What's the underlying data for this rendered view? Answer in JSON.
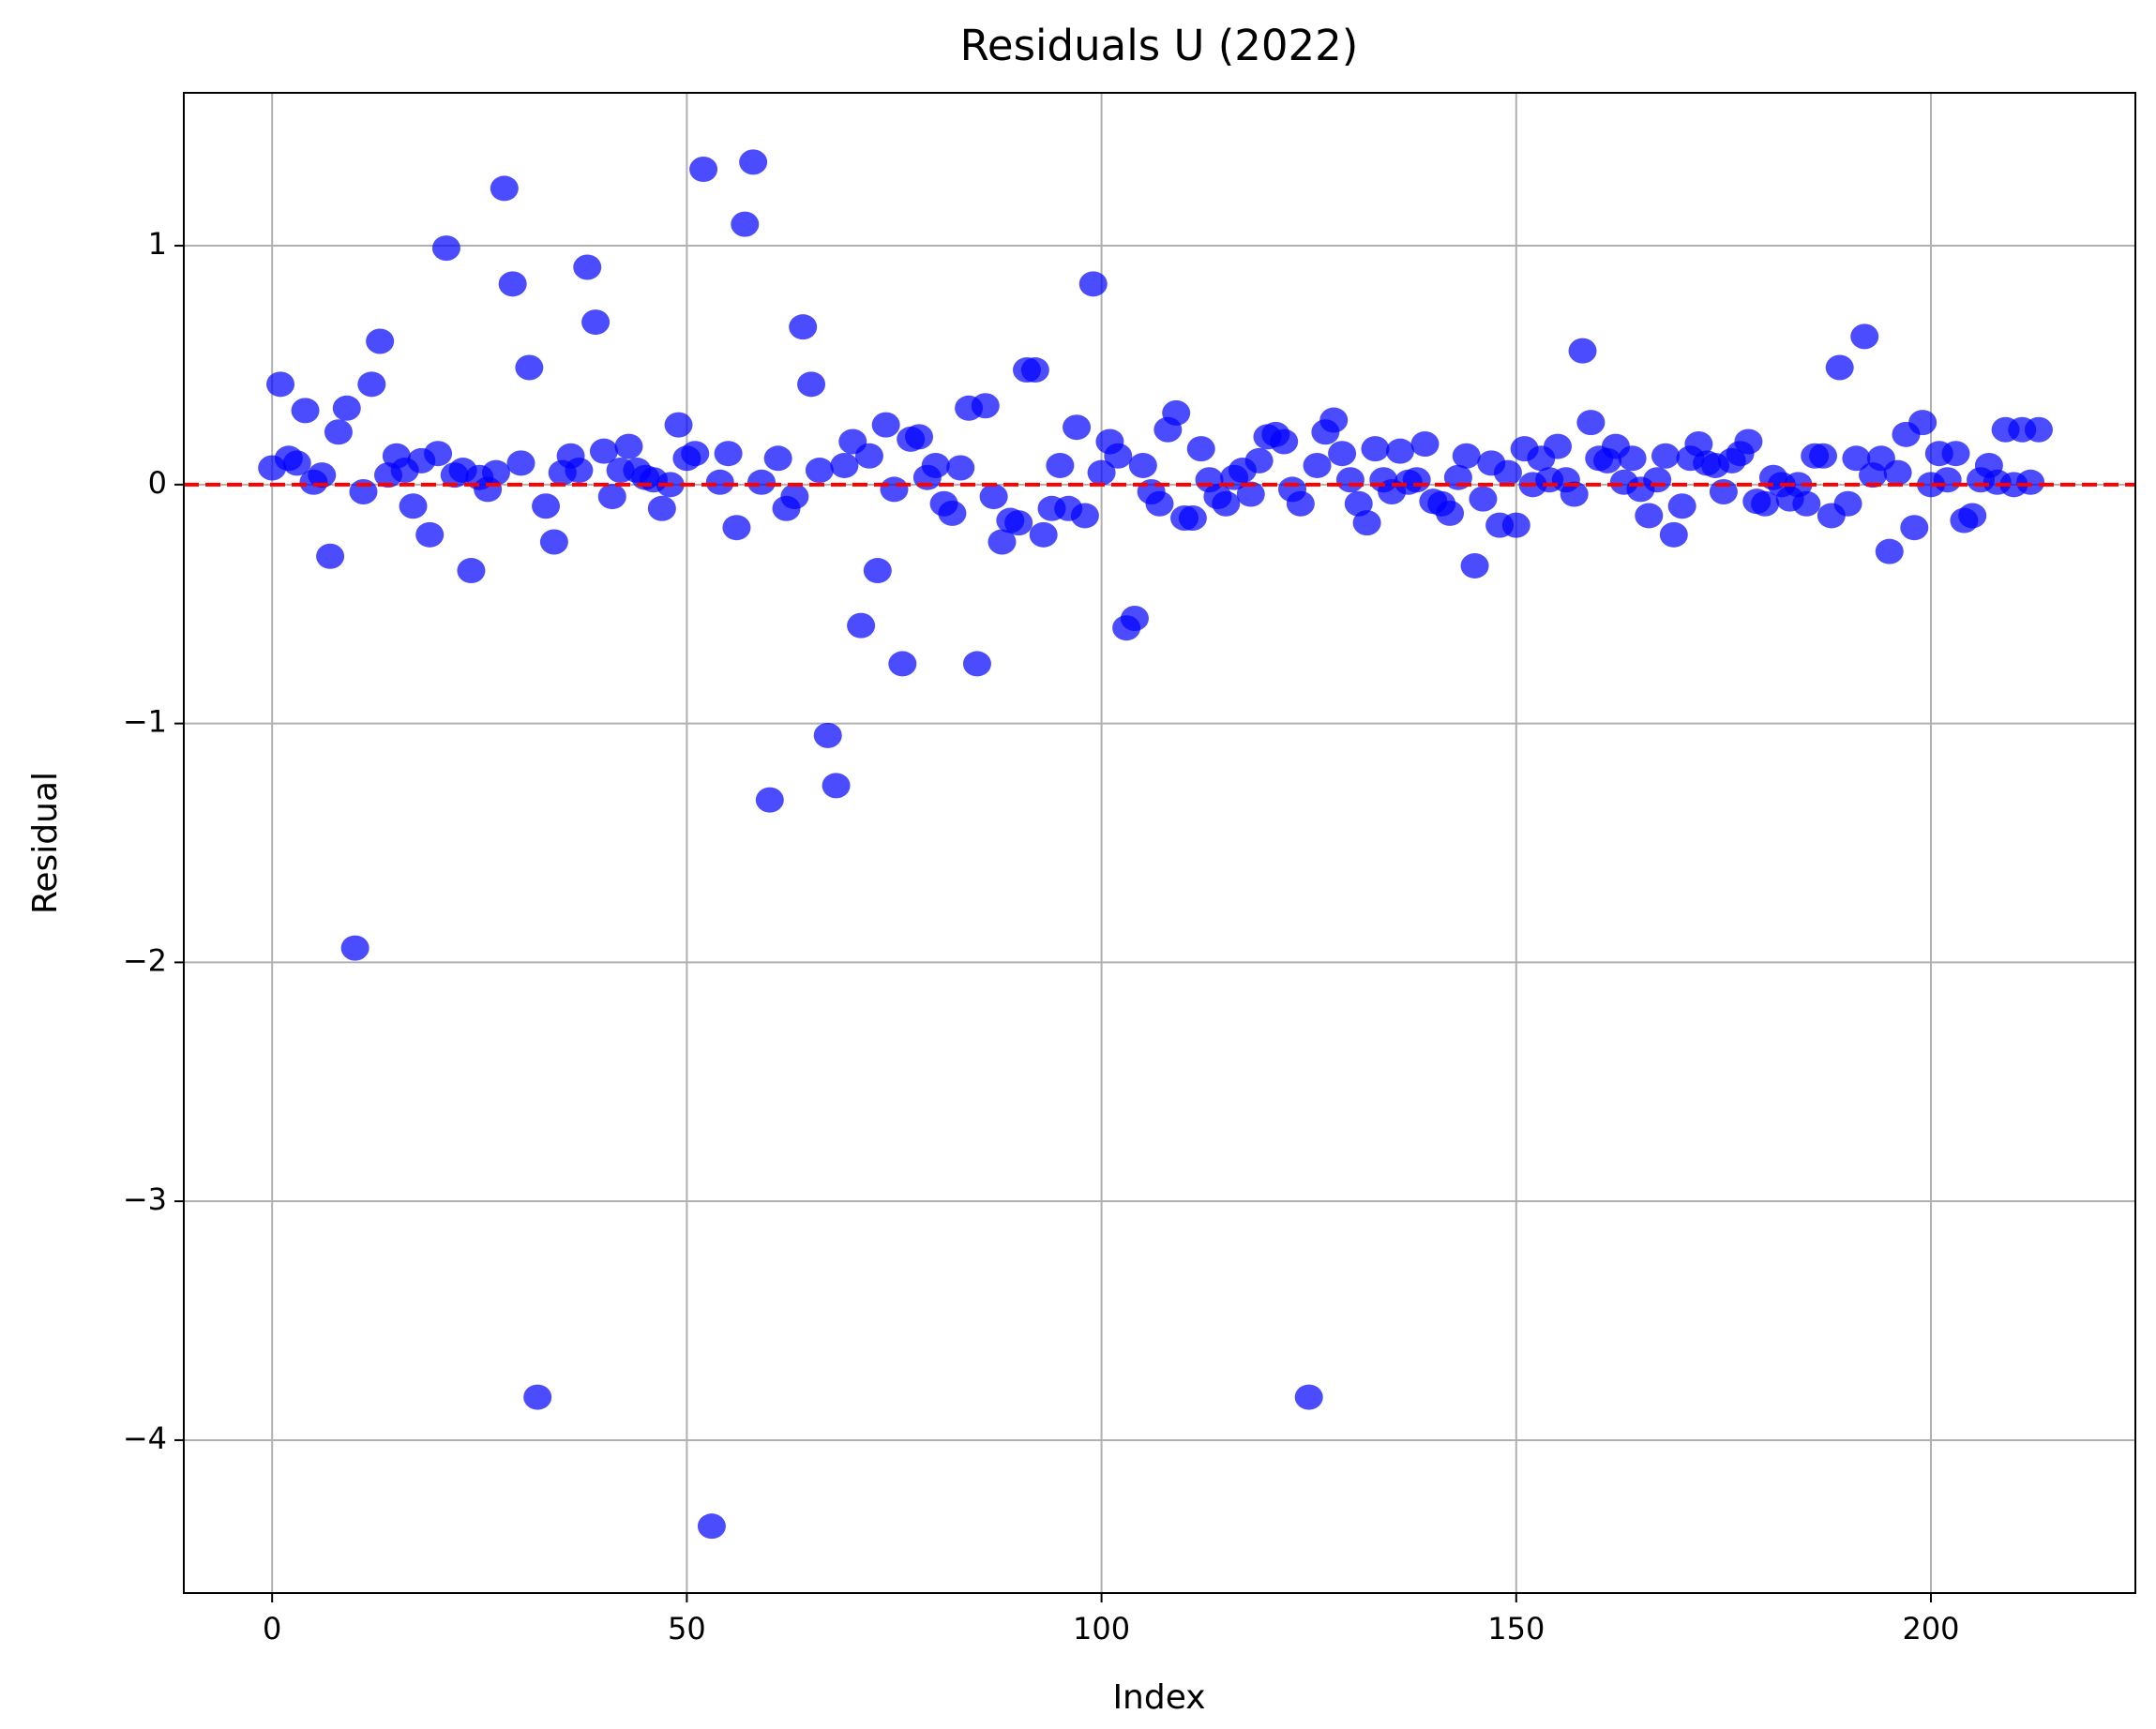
{
  "chart_data": {
    "type": "scatter",
    "title": "Residuals U (2022)",
    "xlabel": "Index",
    "ylabel": "Residual",
    "x": [
      0,
      1,
      2,
      3,
      4,
      5,
      6,
      7,
      8,
      9,
      10,
      11,
      12,
      13,
      14,
      15,
      16,
      17,
      18,
      19,
      20,
      21,
      22,
      23,
      24,
      25,
      26,
      27,
      28,
      29,
      30,
      31,
      32,
      33,
      34,
      35,
      36,
      37,
      38,
      39,
      40,
      41,
      42,
      43,
      44,
      45,
      46,
      47,
      48,
      49,
      50,
      51,
      52,
      53,
      54,
      55,
      56,
      57,
      58,
      59,
      60,
      61,
      62,
      63,
      64,
      65,
      66,
      67,
      68,
      69,
      70,
      71,
      72,
      73,
      74,
      75,
      76,
      77,
      78,
      79,
      80,
      81,
      82,
      83,
      84,
      85,
      86,
      87,
      88,
      89,
      90,
      91,
      92,
      93,
      94,
      95,
      96,
      97,
      98,
      99,
      100,
      101,
      102,
      103,
      104,
      105,
      106,
      107,
      108,
      109,
      110,
      111,
      112,
      113,
      114,
      115,
      116,
      117,
      118,
      119,
      120,
      121,
      122,
      123,
      124,
      125,
      126,
      127,
      128,
      129,
      130,
      131,
      132,
      133,
      134,
      135,
      136,
      137,
      138,
      139,
      140,
      141,
      142,
      143,
      144,
      145,
      146,
      147,
      148,
      149,
      150,
      151,
      152,
      153,
      154,
      155,
      156,
      157,
      158,
      159,
      160,
      161,
      162,
      163,
      164,
      165,
      166,
      167,
      168,
      169,
      170,
      171,
      172,
      173,
      174,
      175,
      176,
      177,
      178,
      179,
      180,
      181,
      182,
      183,
      184,
      185,
      186,
      187,
      188,
      189,
      190,
      191,
      192,
      193,
      194,
      195,
      196,
      197,
      198,
      199,
      200,
      201,
      202,
      203,
      204,
      205,
      206,
      207,
      208,
      209,
      210,
      211,
      212,
      213
    ],
    "values": [
      0.07,
      0.42,
      0.11,
      0.09,
      0.31,
      0.01,
      0.04,
      -0.3,
      0.22,
      0.32,
      -1.94,
      -0.03,
      0.42,
      0.6,
      0.04,
      0.12,
      0.06,
      -0.09,
      0.1,
      -0.21,
      0.13,
      0.99,
      0.04,
      0.06,
      -0.36,
      0.03,
      -0.02,
      0.05,
      1.24,
      0.84,
      0.09,
      0.49,
      -3.82,
      -0.09,
      -0.24,
      0.05,
      0.12,
      0.06,
      0.91,
      0.68,
      0.14,
      -0.05,
      0.06,
      0.16,
      0.06,
      0.03,
      0.02,
      -0.1,
      0.0,
      0.25,
      0.11,
      0.13,
      1.32,
      -4.36,
      0.01,
      0.13,
      -0.18,
      1.09,
      1.35,
      0.01,
      -1.32,
      0.11,
      -0.1,
      -0.05,
      0.66,
      0.42,
      0.06,
      -1.05,
      -1.26,
      0.08,
      0.18,
      -0.59,
      0.12,
      -0.36,
      0.25,
      -0.02,
      -0.75,
      0.19,
      0.2,
      0.03,
      0.08,
      -0.08,
      -0.12,
      0.07,
      0.32,
      -0.75,
      0.33,
      -0.05,
      -0.24,
      -0.15,
      -0.16,
      0.48,
      0.48,
      -0.21,
      -0.1,
      0.08,
      -0.1,
      0.24,
      -0.13,
      0.84,
      0.05,
      0.18,
      0.12,
      -0.6,
      -0.56,
      0.08,
      -0.03,
      -0.08,
      0.23,
      0.3,
      -0.14,
      -0.14,
      0.15,
      0.02,
      -0.05,
      -0.08,
      0.03,
      0.06,
      -0.04,
      0.1,
      0.2,
      0.21,
      0.18,
      -0.02,
      -0.08,
      -3.82,
      0.08,
      0.22,
      0.27,
      0.13,
      0.02,
      -0.08,
      -0.16,
      0.15,
      0.02,
      -0.03,
      0.14,
      0.01,
      0.02,
      0.17,
      -0.07,
      -0.08,
      -0.12,
      0.03,
      0.12,
      -0.34,
      -0.06,
      0.09,
      -0.17,
      0.05,
      -0.17,
      0.15,
      0.0,
      0.11,
      0.02,
      0.16,
      0.02,
      -0.04,
      0.56,
      0.26,
      0.11,
      0.1,
      0.16,
      0.01,
      0.11,
      -0.02,
      -0.13,
      0.02,
      0.12,
      -0.21,
      -0.09,
      0.11,
      0.17,
      0.09,
      0.08,
      -0.03,
      0.1,
      0.13,
      0.18,
      -0.07,
      -0.08,
      0.03,
      0.0,
      -0.06,
      0.0,
      -0.08,
      0.12,
      0.12,
      -0.13,
      0.49,
      -0.08,
      0.11,
      0.62,
      0.04,
      0.11,
      -0.28,
      0.05,
      0.21,
      -0.18,
      0.26,
      0.0,
      0.13,
      0.02,
      0.13,
      -0.15,
      -0.13,
      0.02,
      0.08,
      0.01,
      0.23,
      0.0,
      0.23,
      0.01,
      0.23
    ],
    "color": "blue",
    "hline": {
      "value": 0,
      "color": "red"
    },
    "xlim": [
      -10.65,
      224.65
    ],
    "ylim": [
      -4.64,
      1.64
    ],
    "xticks": [
      0,
      50,
      100,
      150,
      200
    ],
    "yticks": [
      {
        "value": -4,
        "label": "−4"
      },
      {
        "value": -3,
        "label": "−3"
      },
      {
        "value": -2,
        "label": "−2"
      },
      {
        "value": -1,
        "label": "−1"
      },
      0,
      1
    ],
    "grid": true
  }
}
